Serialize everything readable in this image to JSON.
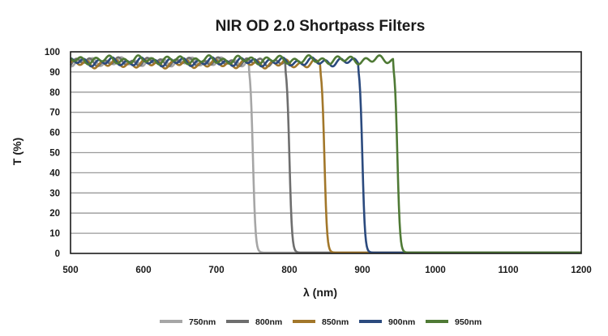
{
  "chart_data": {
    "type": "line",
    "title": "NIR OD 2.0 Shortpass Filters",
    "xlabel": "λ (nm)",
    "ylabel": "T (%)",
    "xlim": [
      500,
      1200
    ],
    "ylim": [
      0,
      100
    ],
    "xticks": [
      500,
      600,
      700,
      800,
      900,
      1000,
      1100,
      1200
    ],
    "yticks": [
      0,
      10,
      20,
      30,
      40,
      50,
      60,
      70,
      80,
      90,
      100
    ],
    "grid": "horizontal",
    "legend_position": "bottom",
    "series": [
      {
        "name": "750nm",
        "color": "#a6a6a6",
        "cutoff_nm": 750,
        "passband_T": 95
      },
      {
        "name": "800nm",
        "color": "#6e6e6e",
        "cutoff_nm": 800,
        "passband_T": 95
      },
      {
        "name": "850nm",
        "color": "#a2772a",
        "cutoff_nm": 848,
        "passband_T": 94
      },
      {
        "name": "900nm",
        "color": "#2b4a7e",
        "cutoff_nm": 900,
        "passband_T": 95
      },
      {
        "name": "950nm",
        "color": "#4f7a35",
        "cutoff_nm": 948,
        "passband_T": 96
      }
    ]
  }
}
